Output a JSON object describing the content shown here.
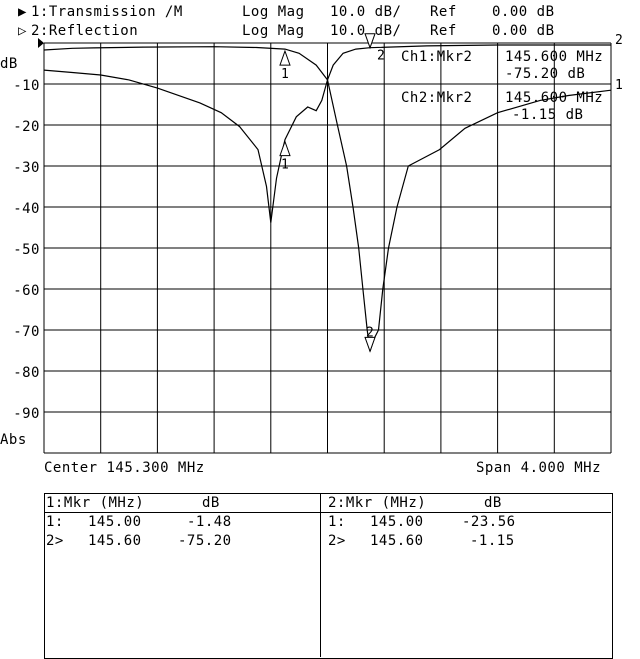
{
  "header": {
    "ch1": {
      "marker": "▶",
      "label": "1:Transmission /M",
      "format": "Log Mag",
      "scale": "10.0 dB/",
      "ref_label": "Ref",
      "ref": "0.00 dB"
    },
    "ch2": {
      "marker": "▷",
      "label": "2:Reflection",
      "format": "Log Mag",
      "scale": "10.0 dB/",
      "ref_label": "Ref",
      "ref": "0.00 dB"
    }
  },
  "axis": {
    "unit": "dB",
    "abs": "Abs",
    "center": "Center 145.300 MHz",
    "span": "Span 4.000 MHz"
  },
  "readout": {
    "ch1_name": "Ch1:Mkr2",
    "ch1_freq": "145.600 MHz",
    "ch1_val": "-75.20 dB",
    "ch2_name": "Ch2:Mkr2",
    "ch2_freq": "145.600 MHz",
    "ch2_val": "-1.15 dB"
  },
  "table": {
    "ch1": {
      "header_mkr": "1:Mkr (MHz)",
      "header_db": "dB",
      "rows": [
        {
          "id": "1:",
          "freq": "145.00",
          "db": "-1.48"
        },
        {
          "id": "2>",
          "freq": "145.60",
          "db": "-75.20"
        }
      ]
    },
    "ch2": {
      "header_mkr": "2:Mkr (MHz)",
      "header_db": "dB",
      "rows": [
        {
          "id": "1:",
          "freq": "145.00",
          "db": "-23.56"
        },
        {
          "id": "2>",
          "freq": "145.60",
          "db": "-1.15"
        }
      ]
    }
  },
  "chart_data": {
    "type": "line",
    "xlim": [
      143.3,
      147.3
    ],
    "ylim": [
      -100,
      0
    ],
    "grid": true,
    "x_divisions": 10,
    "y_divisions": 10,
    "ytick_labels": [
      "-10",
      "-20",
      "-30",
      "-40",
      "-50",
      "-60",
      "-70",
      "-80",
      "-90"
    ],
    "yticks": [
      -10,
      -20,
      -30,
      -40,
      -50,
      -60,
      -70,
      -80,
      -90
    ],
    "series": [
      {
        "name": "1:Transmission",
        "end_label": "1",
        "points": [
          [
            143.3,
            -1.7
          ],
          [
            143.5,
            -1.3
          ],
          [
            143.65,
            -1.2
          ],
          [
            144.0,
            -1.0
          ],
          [
            144.5,
            -0.9
          ],
          [
            144.8,
            -1.1
          ],
          [
            145.0,
            -1.48
          ],
          [
            145.1,
            -2.5
          ],
          [
            145.22,
            -5.4
          ],
          [
            145.3,
            -9
          ],
          [
            145.37,
            -20
          ],
          [
            145.435,
            -30
          ],
          [
            145.48,
            -40
          ],
          [
            145.52,
            -50
          ],
          [
            145.55,
            -60
          ],
          [
            145.58,
            -70
          ],
          [
            145.6,
            -75.2
          ],
          [
            145.63,
            -72
          ],
          [
            145.66,
            -70
          ],
          [
            145.69,
            -60
          ],
          [
            145.73,
            -50
          ],
          [
            145.79,
            -40
          ],
          [
            145.87,
            -30
          ],
          [
            146.09,
            -26
          ],
          [
            146.27,
            -20.8
          ],
          [
            146.5,
            -17
          ],
          [
            146.8,
            -14
          ],
          [
            147.0,
            -12.8
          ],
          [
            147.3,
            -11.5
          ]
        ]
      },
      {
        "name": "2:Reflection",
        "end_label": "2",
        "points": [
          [
            143.3,
            -6.6
          ],
          [
            143.5,
            -7.2
          ],
          [
            143.7,
            -7.8
          ],
          [
            143.9,
            -9
          ],
          [
            144.1,
            -11
          ],
          [
            144.4,
            -14.6
          ],
          [
            144.55,
            -17
          ],
          [
            144.68,
            -20.4
          ],
          [
            144.81,
            -26
          ],
          [
            144.87,
            -35
          ],
          [
            144.9,
            -43.8
          ],
          [
            144.94,
            -33
          ],
          [
            144.99,
            -25
          ],
          [
            145.0,
            -23.56
          ],
          [
            145.08,
            -18
          ],
          [
            145.16,
            -15.6
          ],
          [
            145.22,
            -16.5
          ],
          [
            145.26,
            -14
          ],
          [
            145.3,
            -9
          ],
          [
            145.34,
            -5.4
          ],
          [
            145.41,
            -2.5
          ],
          [
            145.5,
            -1.5
          ],
          [
            145.6,
            -1.15
          ],
          [
            146.0,
            -0.7
          ],
          [
            146.5,
            -0.5
          ],
          [
            147.0,
            -0.5
          ],
          [
            147.3,
            -0.5
          ]
        ]
      }
    ],
    "markers": [
      {
        "series": 0,
        "label": "1",
        "freq": 145.0,
        "db": -1.48,
        "dir": "up"
      },
      {
        "series": 0,
        "label": "2",
        "freq": 145.6,
        "db": -75.2,
        "dir": "down"
      },
      {
        "series": 1,
        "label": "1",
        "freq": 145.0,
        "db": -23.56,
        "dir": "up"
      },
      {
        "series": 1,
        "label": "2",
        "freq": 145.6,
        "db": -1.15,
        "dir": "down"
      }
    ]
  }
}
